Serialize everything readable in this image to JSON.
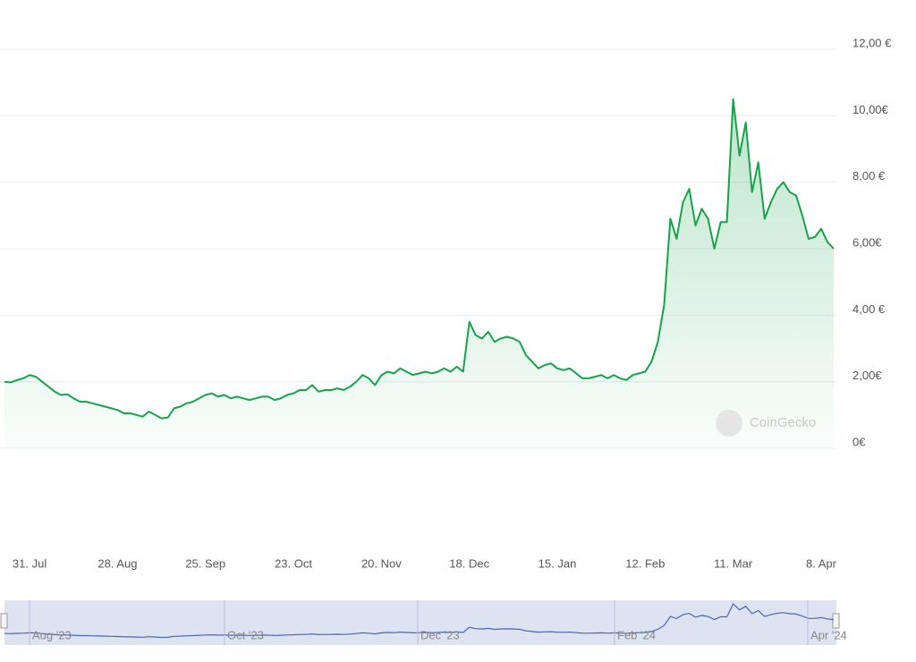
{
  "chart_data": {
    "type": "line",
    "categories": [
      null,
      null,
      null,
      null,
      "31. Jul",
      null,
      null,
      null,
      null,
      null,
      null,
      null,
      null,
      null,
      null,
      null,
      null,
      null,
      "28. Aug",
      null,
      null,
      null,
      null,
      null,
      null,
      null,
      null,
      null,
      null,
      null,
      null,
      null,
      "25. Sep",
      null,
      null,
      null,
      null,
      null,
      null,
      null,
      null,
      null,
      null,
      null,
      null,
      null,
      "23. Oct",
      null,
      null,
      null,
      null,
      null,
      null,
      null,
      null,
      null,
      null,
      null,
      null,
      null,
      "20. Nov",
      null,
      null,
      null,
      null,
      null,
      null,
      null,
      null,
      null,
      null,
      null,
      null,
      null,
      "18. Dec",
      null,
      null,
      null,
      null,
      null,
      null,
      null,
      null,
      null,
      null,
      null,
      null,
      null,
      "15. Jan",
      null,
      null,
      null,
      null,
      null,
      null,
      null,
      null,
      null,
      null,
      null,
      null,
      null,
      "12. Feb",
      null,
      null,
      null,
      null,
      null,
      null,
      null,
      null,
      null,
      null,
      null,
      null,
      null,
      "11. Mar",
      null,
      null,
      null,
      null,
      null,
      null,
      null,
      null,
      null,
      null,
      null,
      null,
      null,
      "8. Apr",
      null,
      null
    ],
    "values": [
      2.0,
      1.98,
      2.05,
      2.1,
      2.2,
      2.15,
      2.0,
      1.85,
      1.7,
      1.6,
      1.62,
      1.5,
      1.4,
      1.4,
      1.35,
      1.3,
      1.25,
      1.2,
      1.15,
      1.05,
      1.05,
      1.0,
      0.95,
      1.1,
      1.0,
      0.9,
      0.92,
      1.2,
      1.25,
      1.35,
      1.4,
      1.5,
      1.6,
      1.65,
      1.55,
      1.6,
      1.5,
      1.55,
      1.5,
      1.45,
      1.5,
      1.55,
      1.55,
      1.45,
      1.5,
      1.6,
      1.65,
      1.75,
      1.75,
      1.9,
      1.7,
      1.75,
      1.75,
      1.8,
      1.75,
      1.85,
      2.0,
      2.2,
      2.1,
      1.9,
      2.2,
      2.3,
      2.25,
      2.4,
      2.3,
      2.2,
      2.25,
      2.3,
      2.25,
      2.3,
      2.4,
      2.3,
      2.45,
      2.3,
      3.8,
      3.4,
      3.3,
      3.5,
      3.2,
      3.3,
      3.35,
      3.3,
      3.2,
      2.8,
      2.6,
      2.4,
      2.5,
      2.55,
      2.4,
      2.35,
      2.4,
      2.25,
      2.1,
      2.1,
      2.15,
      2.2,
      2.1,
      2.2,
      2.1,
      2.05,
      2.2,
      2.25,
      2.3,
      2.6,
      3.2,
      4.3,
      6.9,
      6.3,
      7.4,
      7.8,
      6.7,
      7.2,
      6.9,
      6.0,
      6.8,
      6.8,
      10.5,
      8.8,
      9.8,
      7.7,
      8.6,
      6.9,
      7.4,
      7.8,
      8.0,
      7.7,
      7.6,
      7.0,
      6.3,
      6.35,
      6.6,
      6.2,
      6.0
    ],
    "color": "#16a34a",
    "ylim": [
      0,
      12
    ],
    "yticks": [
      {
        "value": 0,
        "label": "0€"
      },
      {
        "value": 2,
        "label": "2,00€"
      },
      {
        "value": 4,
        "label": "4,00 €"
      },
      {
        "value": 6,
        "label": "6,00€"
      },
      {
        "value": 8,
        "label": "8,00 €"
      },
      {
        "value": 10,
        "label": "10,00€"
      },
      {
        "value": 12,
        "label": "12,00 €"
      }
    ],
    "grid": true,
    "watermark": "CoinGecko",
    "navigator_labels": [
      "Aug '23",
      "Oct '23",
      "Dec '23",
      "Feb '24",
      "Apr '24"
    ]
  }
}
